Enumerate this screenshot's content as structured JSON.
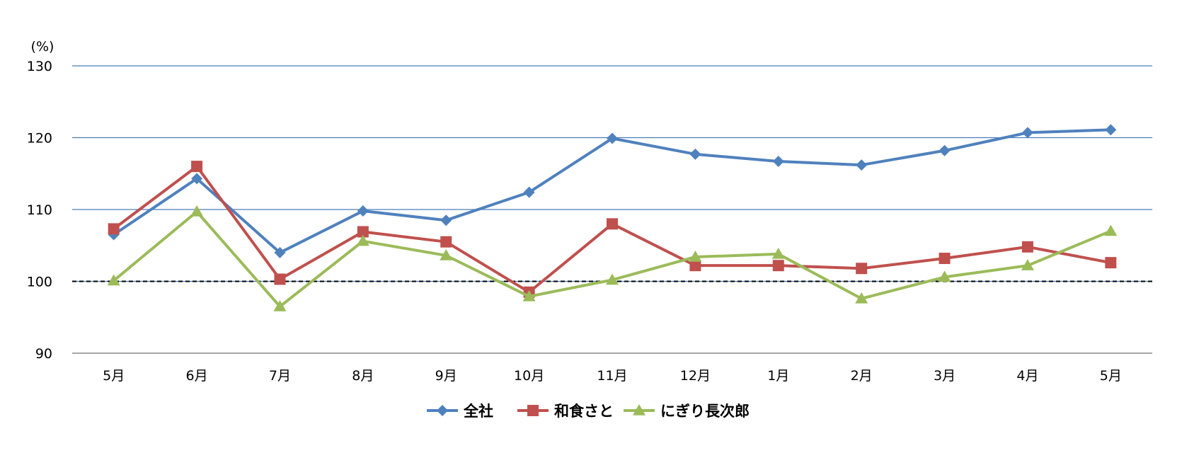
{
  "chart_data": {
    "type": "line",
    "unit_label": "(%)",
    "categories": [
      "5月",
      "6月",
      "7月",
      "8月",
      "9月",
      "10月",
      "11月",
      "12月",
      "1月",
      "2月",
      "3月",
      "4月",
      "5月"
    ],
    "ylim": [
      90,
      130
    ],
    "yticks": [
      "90",
      "100",
      "110",
      "120",
      "130"
    ],
    "grid": true,
    "reference_line": 100,
    "legend_position": "bottom",
    "series": [
      {
        "name": "全社",
        "marker": "diamond",
        "color": "#4F81BD",
        "values": [
          106.5,
          114.3,
          104.0,
          109.8,
          108.5,
          112.4,
          119.9,
          117.7,
          116.7,
          116.2,
          118.2,
          120.7,
          121.1
        ]
      },
      {
        "name": "和食さと",
        "marker": "square",
        "color": "#C0504D",
        "values": [
          107.3,
          116.0,
          100.3,
          106.9,
          105.5,
          98.5,
          108.0,
          102.2,
          102.2,
          101.8,
          103.2,
          104.8,
          102.6
        ]
      },
      {
        "name": "にぎり長次郎",
        "marker": "triangle",
        "color": "#9BBB59",
        "values": [
          100.1,
          109.7,
          96.5,
          105.6,
          103.6,
          97.9,
          100.2,
          103.4,
          103.8,
          97.6,
          100.6,
          102.2,
          107.0
        ]
      }
    ]
  }
}
